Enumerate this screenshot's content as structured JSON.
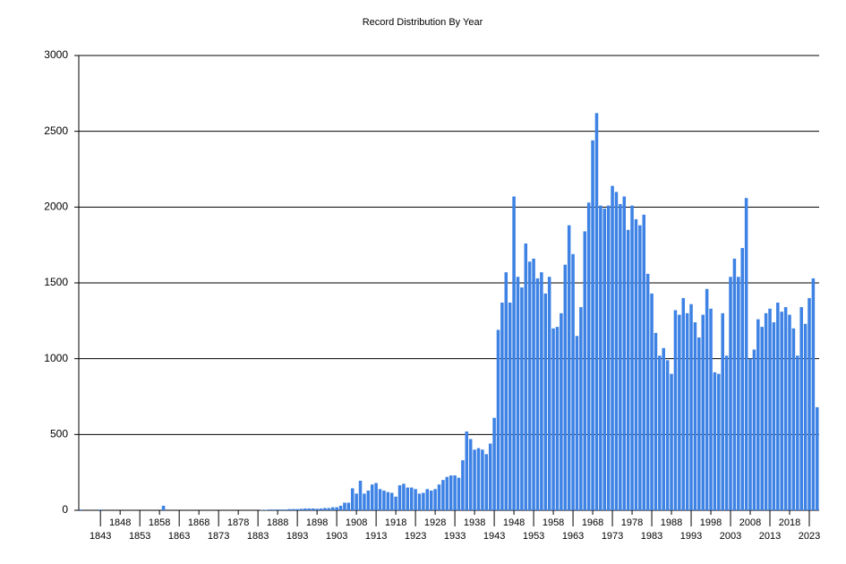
{
  "chart_data": {
    "type": "bar",
    "title": "Record Distribution By Year",
    "categories": [
      null,
      null,
      null,
      null,
      null,
      "1843",
      null,
      null,
      null,
      null,
      "1848",
      null,
      null,
      null,
      null,
      "1853",
      null,
      null,
      null,
      null,
      "1858",
      null,
      null,
      null,
      null,
      "1863",
      null,
      null,
      null,
      null,
      "1868",
      null,
      null,
      null,
      null,
      "1873",
      null,
      null,
      null,
      null,
      "1878",
      null,
      null,
      null,
      null,
      "1883",
      null,
      null,
      null,
      null,
      "1888",
      null,
      null,
      null,
      null,
      "1893",
      null,
      null,
      null,
      null,
      "1898",
      null,
      null,
      null,
      null,
      "1903",
      null,
      null,
      null,
      null,
      "1908",
      null,
      null,
      null,
      null,
      "1913",
      null,
      null,
      null,
      null,
      "1918",
      null,
      null,
      null,
      null,
      "1923",
      null,
      null,
      null,
      null,
      "1928",
      null,
      null,
      null,
      null,
      "1933",
      null,
      null,
      null,
      null,
      "1938",
      null,
      null,
      null,
      null,
      "1943",
      null,
      null,
      null,
      null,
      "1948",
      null,
      null,
      null,
      null,
      "1953",
      null,
      null,
      null,
      null,
      "1958",
      null,
      null,
      null,
      null,
      "1963",
      null,
      null,
      null,
      null,
      "1968",
      null,
      null,
      null,
      null,
      "1973",
      null,
      null,
      null,
      null,
      "1978",
      null,
      null,
      null,
      null,
      "1983",
      null,
      null,
      null,
      null,
      "1988",
      null,
      null,
      null,
      null,
      "1993",
      null,
      null,
      null,
      null,
      "1998",
      null,
      null,
      null,
      null,
      "2003",
      null,
      null,
      null,
      null,
      "2008",
      null,
      null,
      null,
      null,
      "2013",
      null,
      null,
      null,
      null,
      "2018",
      null,
      null,
      null,
      null,
      "2023",
      null,
      null
    ],
    "values": [
      5,
      0,
      0,
      0,
      0,
      5,
      0,
      0,
      0,
      0,
      0,
      0,
      0,
      0,
      0,
      0,
      0,
      0,
      0,
      0,
      0,
      30,
      0,
      0,
      0,
      0,
      0,
      0,
      0,
      0,
      0,
      0,
      0,
      0,
      0,
      0,
      0,
      0,
      0,
      0,
      0,
      0,
      0,
      0,
      0,
      0,
      3,
      3,
      5,
      5,
      5,
      5,
      5,
      8,
      8,
      8,
      10,
      12,
      12,
      12,
      10,
      12,
      15,
      15,
      20,
      20,
      30,
      50,
      50,
      145,
      110,
      195,
      110,
      130,
      170,
      180,
      140,
      130,
      120,
      115,
      90,
      165,
      175,
      150,
      150,
      140,
      110,
      115,
      140,
      130,
      140,
      170,
      200,
      220,
      230,
      230,
      215,
      330,
      520,
      470,
      400,
      410,
      400,
      370,
      440,
      610,
      1190,
      1370,
      1570,
      1370,
      2070,
      1540,
      1470,
      1760,
      1640,
      1660,
      1530,
      1570,
      1430,
      1540,
      1200,
      1210,
      1300,
      1620,
      1880,
      1690,
      1150,
      1340,
      1840,
      2030,
      2440,
      2620,
      2010,
      1990,
      2010,
      2140,
      2100,
      2020,
      2070,
      1850,
      2010,
      1920,
      1880,
      1950,
      1560,
      1430,
      1170,
      1020,
      1070,
      990,
      900,
      1320,
      1290,
      1400,
      1300,
      1360,
      1240,
      1140,
      1290,
      1460,
      1330,
      910,
      900,
      1300,
      1020,
      1540,
      1660,
      1540,
      1730,
      2060,
      1000,
      1060,
      1260,
      1210,
      1300,
      1330,
      1240,
      1370,
      1310,
      1340,
      1290,
      1200,
      1020,
      1340,
      1230,
      1400,
      1530,
      680
    ],
    "color": "#3d82e4",
    "ylim": [
      0,
      3000
    ],
    "yticks": [
      0,
      500,
      1000,
      1500,
      2000,
      2500,
      3000
    ],
    "grid": true
  }
}
